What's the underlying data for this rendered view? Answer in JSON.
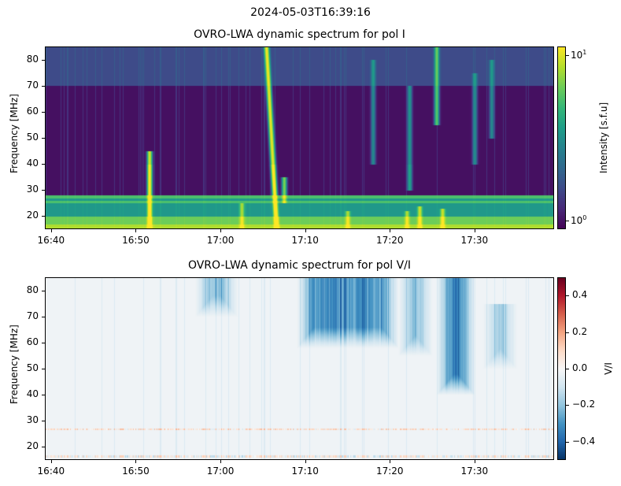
{
  "suptitle": "2024-05-03T16:39:16",
  "chart_data": [
    {
      "type": "heatmap",
      "title": "OVRO-LWA dynamic spectrum for pol I",
      "ylabel": "Frequency [MHz]",
      "xlabel": "",
      "xlim_min_after_1640": [
        -0.73,
        59.4
      ],
      "ylim": [
        15,
        85
      ],
      "xticks": [
        "16:40",
        "16:50",
        "17:00",
        "17:10",
        "17:20",
        "17:30"
      ],
      "yticks": [
        20,
        30,
        40,
        50,
        60,
        70,
        80
      ],
      "colorbar": {
        "label": "Intensity [s.f.u]",
        "scale": "log",
        "range": [
          0.9,
          11.5
        ],
        "ticks": [
          "10^0",
          "10^1"
        ],
        "tick_labels": [
          {
            "base": "10",
            "exp": "0"
          },
          {
            "base": "10",
            "exp": "1"
          }
        ],
        "colormap": "viridis"
      },
      "bursts": [
        {
          "time": 11.6,
          "fmin": 15,
          "fmax": 45,
          "peak": 11
        },
        {
          "time": 26.6,
          "fmin": 15,
          "fmax": 85,
          "peak": 12,
          "drift": -1.2
        },
        {
          "time": 27.5,
          "fmin": 25,
          "fmax": 35,
          "peak": 6
        },
        {
          "time": 22.5,
          "fmin": 15,
          "fmax": 25,
          "peak": 5
        },
        {
          "time": 35,
          "fmin": 15,
          "fmax": 22,
          "peak": 5
        },
        {
          "time": 42,
          "fmin": 15,
          "fmax": 22,
          "peak": 5
        },
        {
          "time": 42.3,
          "fmin": 30,
          "fmax": 70,
          "peak": 3
        },
        {
          "time": 43.5,
          "fmin": 15,
          "fmax": 24,
          "peak": 6
        },
        {
          "time": 45.5,
          "fmin": 55,
          "fmax": 85,
          "peak": 6
        },
        {
          "time": 46.2,
          "fmin": 15,
          "fmax": 23,
          "peak": 6
        },
        {
          "time": 38,
          "fmin": 40,
          "fmax": 80,
          "peak": 2.5
        },
        {
          "time": 50,
          "fmin": 40,
          "fmax": 75,
          "peak": 2.5
        },
        {
          "time": 52,
          "fmin": 50,
          "fmax": 80,
          "peak": 2.5
        }
      ]
    },
    {
      "type": "heatmap",
      "title": "OVRO-LWA dynamic spectrum for pol V/I",
      "ylabel": "Frequency [MHz]",
      "xlabel": "",
      "xlim_min_after_1640": [
        -0.73,
        59.4
      ],
      "ylim": [
        15,
        85
      ],
      "xticks": [
        "16:40",
        "16:50",
        "17:00",
        "17:10",
        "17:20",
        "17:30"
      ],
      "yticks": [
        20,
        30,
        40,
        50,
        60,
        70,
        80
      ],
      "colorbar": {
        "label": "V/I",
        "scale": "linear",
        "range": [
          -0.5,
          0.5
        ],
        "ticks": [
          "0.4",
          "0.2",
          "0.0",
          "−0.2",
          "−0.4"
        ],
        "colormap": "RdBu_r"
      },
      "regions": [
        {
          "t0": 29,
          "t1": 41,
          "fmin": 58,
          "fmax": 85,
          "value": -0.35
        },
        {
          "t0": 45.5,
          "t1": 50,
          "fmin": 40,
          "fmax": 85,
          "value": -0.45
        },
        {
          "t0": 17,
          "t1": 22,
          "fmin": 70,
          "fmax": 85,
          "value": -0.25
        },
        {
          "t0": 41,
          "t1": 45,
          "fmin": 55,
          "fmax": 85,
          "value": -0.25
        },
        {
          "t0": 51,
          "t1": 55,
          "fmin": 50,
          "fmax": 75,
          "value": -0.2
        }
      ]
    }
  ]
}
